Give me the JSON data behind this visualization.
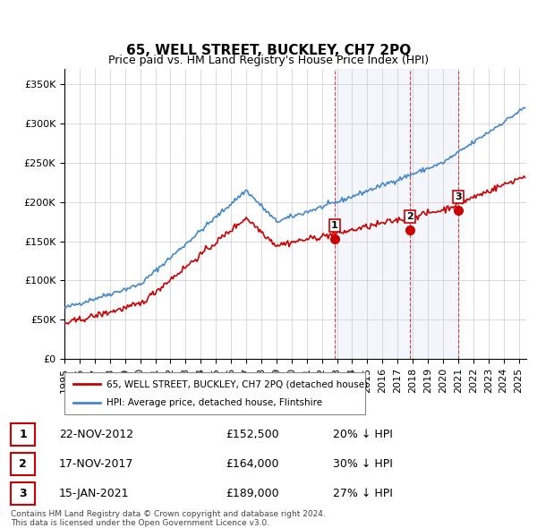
{
  "title": "65, WELL STREET, BUCKLEY, CH7 2PQ",
  "subtitle": "Price paid vs. HM Land Registry's House Price Index (HPI)",
  "footer": "Contains HM Land Registry data © Crown copyright and database right 2024.\nThis data is licensed under the Open Government Licence v3.0.",
  "legend_red": "65, WELL STREET, BUCKLEY, CH7 2PQ (detached house)",
  "legend_blue": "HPI: Average price, detached house, Flintshire",
  "transactions": [
    {
      "num": 1,
      "date": "22-NOV-2012",
      "price": "£152,500",
      "hpi": "20% ↓ HPI",
      "year": 2012.9
    },
    {
      "num": 2,
      "date": "17-NOV-2017",
      "price": "£164,000",
      "hpi": "30% ↓ HPI",
      "year": 2017.9
    },
    {
      "num": 3,
      "date": "15-JAN-2021",
      "price": "£189,000",
      "hpi": "27% ↓ HPI",
      "year": 2021.05
    }
  ],
  "ylim": [
    0,
    370000
  ],
  "xlim_start": 1995.0,
  "xlim_end": 2025.5,
  "background_color": "#f0f4ff",
  "plot_bg": "#ffffff",
  "red_color": "#cc0000",
  "blue_color": "#4488cc",
  "grid_color": "#cccccc"
}
